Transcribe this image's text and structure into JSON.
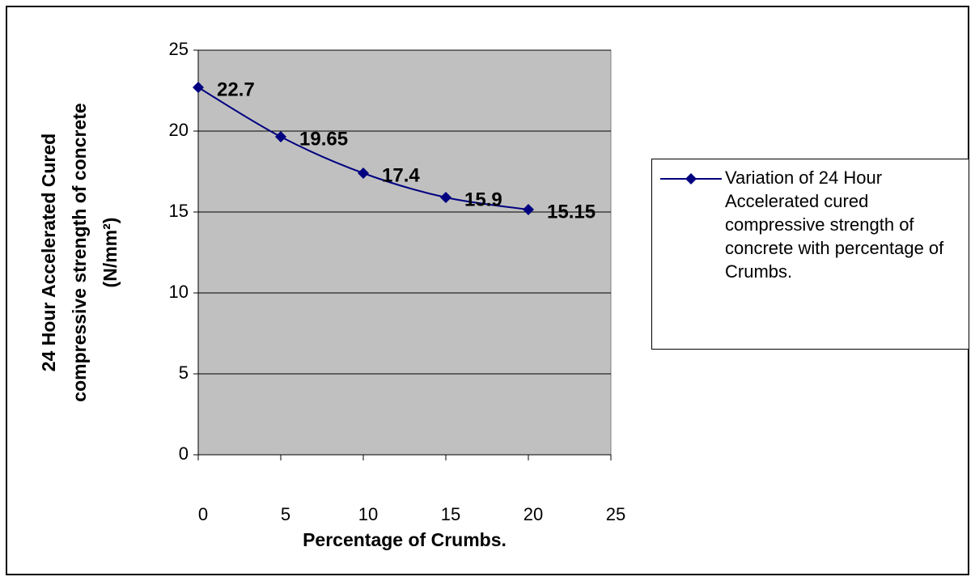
{
  "chart_data": {
    "type": "line",
    "x_label": "Percentage of Crumbs.",
    "y_label": [
      "24 Hour Accelerated Cured",
      "compressive strength of concrete",
      "(N/mm²)"
    ],
    "x": [
      0,
      5,
      10,
      15,
      20
    ],
    "series": [
      {
        "name": "Variation of 24 Hour Accelerated cured compressive strength of concrete with percentage of Crumbs.",
        "color": "#000080",
        "values": [
          22.7,
          19.65,
          17.4,
          15.9,
          15.15
        ]
      }
    ],
    "xlim": [
      0,
      25
    ],
    "xticks": [
      0,
      5,
      10,
      15,
      20,
      25
    ],
    "ylim": [
      0,
      25
    ],
    "yticks": [
      0,
      5,
      10,
      15,
      20,
      25
    ],
    "grid": true,
    "legend": "right"
  }
}
